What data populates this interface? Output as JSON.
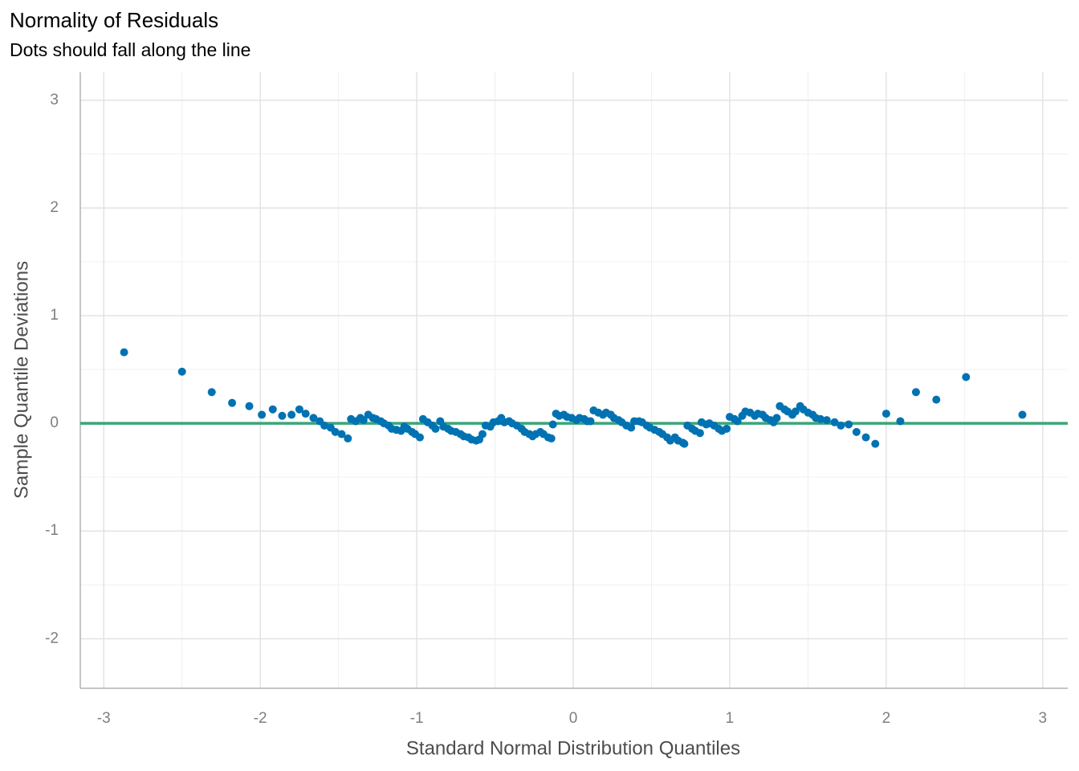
{
  "chart_data": {
    "type": "scatter",
    "title": "Normality of Residuals",
    "subtitle": "Dots should fall along the line",
    "x_label": "Standard Normal Distribution Quantiles",
    "y_label": "Sample Quantile Deviations",
    "xlim": [
      -3.15,
      3.16
    ],
    "ylim": [
      -2.46,
      3.26
    ],
    "xticks": [
      -3,
      -2,
      -1,
      0,
      1,
      2,
      3
    ],
    "yticks": [
      -2,
      -1,
      0,
      1,
      2,
      3
    ],
    "x_minor_ticks": [
      -2.5,
      -1.5,
      -0.5,
      0.5,
      1.5,
      2.5
    ],
    "y_minor_ticks": [
      -1.5,
      -0.5,
      0.5,
      1.5,
      2.5
    ],
    "grid": true,
    "reference_line": {
      "y": 0,
      "color": "#3aa57a"
    },
    "series": [
      {
        "color": "#0072b2",
        "x": [
          -2.87,
          -2.5,
          -2.31,
          -2.18,
          -2.07,
          -1.99,
          -1.92,
          -1.86,
          -1.8,
          -1.75,
          -1.71,
          -1.66,
          -1.62,
          -1.59,
          -1.55,
          -1.52,
          -1.48,
          -1.44,
          -1.42,
          -1.39,
          -1.36,
          -1.34,
          -1.31,
          -1.28,
          -1.26,
          -1.23,
          -1.21,
          -1.18,
          -1.16,
          -1.13,
          -1.1,
          -1.08,
          -1.06,
          -1.03,
          -1.01,
          -0.98,
          -0.96,
          -0.93,
          -0.9,
          -0.88,
          -0.85,
          -0.83,
          -0.8,
          -0.78,
          -0.75,
          -0.72,
          -0.7,
          -0.67,
          -0.65,
          -0.62,
          -0.6,
          -0.58,
          -0.56,
          -0.53,
          -0.51,
          -0.48,
          -0.46,
          -0.44,
          -0.41,
          -0.39,
          -0.36,
          -0.33,
          -0.31,
          -0.28,
          -0.26,
          -0.24,
          -0.21,
          -0.19,
          -0.16,
          -0.14,
          -0.13,
          -0.11,
          -0.09,
          -0.06,
          -0.04,
          -0.01,
          0.02,
          0.04,
          0.07,
          0.09,
          0.11,
          0.13,
          0.16,
          0.19,
          0.21,
          0.24,
          0.26,
          0.29,
          0.31,
          0.34,
          0.37,
          0.39,
          0.42,
          0.44,
          0.47,
          0.49,
          0.52,
          0.55,
          0.57,
          0.6,
          0.62,
          0.65,
          0.67,
          0.7,
          0.71,
          0.73,
          0.76,
          0.78,
          0.81,
          0.82,
          0.85,
          0.87,
          0.9,
          0.93,
          0.95,
          0.98,
          1.0,
          1.03,
          1.05,
          1.08,
          1.1,
          1.13,
          1.16,
          1.18,
          1.21,
          1.23,
          1.26,
          1.28,
          1.3,
          1.32,
          1.35,
          1.37,
          1.4,
          1.42,
          1.45,
          1.47,
          1.5,
          1.53,
          1.55,
          1.58,
          1.62,
          1.67,
          1.71,
          1.76,
          1.81,
          1.87,
          1.93,
          2.0,
          2.09,
          2.19,
          2.32,
          2.51,
          2.87
        ],
        "values": [
          0.66,
          0.48,
          0.29,
          0.19,
          0.16,
          0.08,
          0.13,
          0.07,
          0.08,
          0.13,
          0.09,
          0.05,
          0.02,
          -0.02,
          -0.04,
          -0.08,
          -0.1,
          -0.14,
          0.04,
          0.02,
          0.05,
          0.03,
          0.08,
          0.05,
          0.04,
          0.02,
          0.0,
          -0.02,
          -0.05,
          -0.06,
          -0.07,
          -0.03,
          -0.05,
          -0.08,
          -0.1,
          -0.13,
          0.04,
          0.01,
          -0.02,
          -0.05,
          0.02,
          -0.03,
          -0.05,
          -0.07,
          -0.08,
          -0.1,
          -0.12,
          -0.13,
          -0.15,
          -0.16,
          -0.15,
          -0.1,
          -0.02,
          -0.03,
          0.01,
          0.02,
          0.05,
          0.01,
          0.02,
          0.0,
          -0.02,
          -0.05,
          -0.08,
          -0.1,
          -0.12,
          -0.1,
          -0.08,
          -0.1,
          -0.13,
          -0.14,
          -0.01,
          0.09,
          0.07,
          0.08,
          0.06,
          0.05,
          0.03,
          0.05,
          0.04,
          0.02,
          0.02,
          0.12,
          0.1,
          0.08,
          0.1,
          0.08,
          0.05,
          0.03,
          0.01,
          -0.02,
          -0.04,
          0.02,
          0.02,
          0.01,
          -0.02,
          -0.04,
          -0.06,
          -0.08,
          -0.1,
          -0.13,
          -0.16,
          -0.13,
          -0.16,
          -0.18,
          -0.19,
          -0.02,
          -0.05,
          -0.07,
          -0.09,
          0.01,
          -0.01,
          0.0,
          -0.02,
          -0.05,
          -0.07,
          -0.05,
          0.06,
          0.04,
          0.02,
          0.07,
          0.11,
          0.1,
          0.07,
          0.09,
          0.08,
          0.05,
          0.03,
          0.01,
          0.05,
          0.16,
          0.13,
          0.11,
          0.08,
          0.11,
          0.16,
          0.13,
          0.1,
          0.08,
          0.05,
          0.04,
          0.03,
          0.01,
          -0.02,
          -0.01,
          -0.08,
          -0.13,
          -0.19,
          0.09,
          0.02,
          0.29,
          0.22,
          0.43,
          0.08
        ]
      }
    ]
  }
}
